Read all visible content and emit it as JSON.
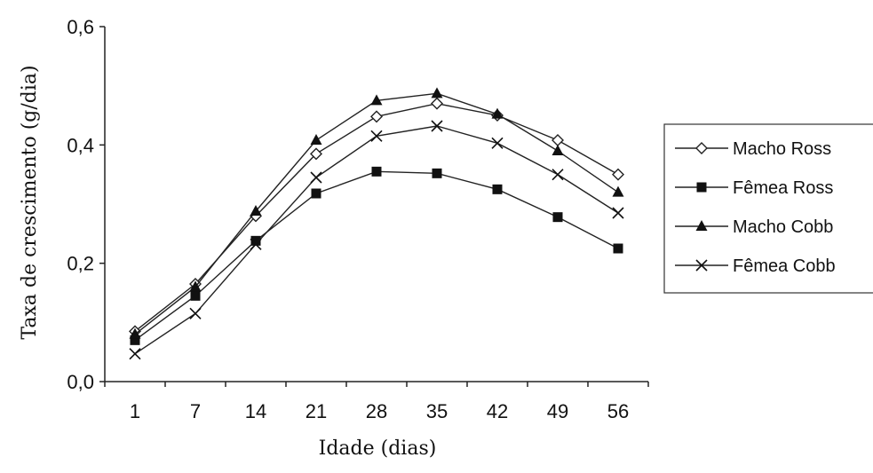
{
  "chart_data": {
    "type": "line",
    "xlabel": "Idade (dias)",
    "ylabel": "Taxa de crescimento (g/dia)",
    "categories": [
      "1",
      "7",
      "14",
      "21",
      "28",
      "35",
      "42",
      "49",
      "56"
    ],
    "ylim": [
      0,
      0.6
    ],
    "yticks": [
      0,
      0.2,
      0.4,
      0.6
    ],
    "ytick_labels": [
      "0,0",
      "0,2",
      "0,4",
      "0,6"
    ],
    "grid": false,
    "legend_position": "right",
    "series": [
      {
        "name": "Macho Ross",
        "marker": "diamond-open",
        "values": [
          0.085,
          0.165,
          0.28,
          0.385,
          0.448,
          0.47,
          0.45,
          0.408,
          0.35
        ]
      },
      {
        "name": "Fêmea Ross",
        "marker": "square-filled",
        "values": [
          0.07,
          0.145,
          0.238,
          0.318,
          0.355,
          0.352,
          0.325,
          0.278,
          0.225
        ]
      },
      {
        "name": "Macho Cobb",
        "marker": "triangle-filled",
        "values": [
          0.08,
          0.16,
          0.288,
          0.408,
          0.475,
          0.487,
          0.452,
          0.39,
          0.32
        ]
      },
      {
        "name": "Fêmea Cobb",
        "marker": "x",
        "values": [
          0.047,
          0.115,
          0.232,
          0.345,
          0.415,
          0.432,
          0.403,
          0.35,
          0.285
        ]
      }
    ]
  }
}
